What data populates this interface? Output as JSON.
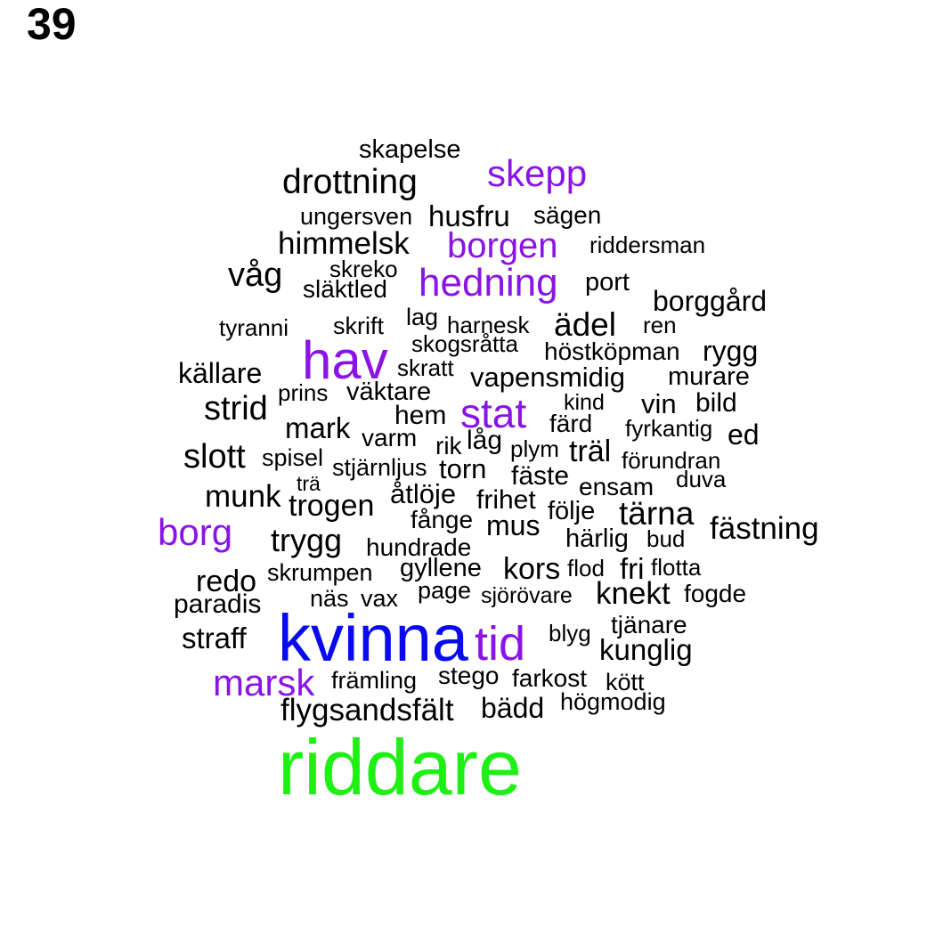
{
  "panel_number": "39",
  "colors": {
    "default": "#000000",
    "purple": "#8a14e6",
    "blue": "#0a0af0",
    "green": "#1ef014"
  },
  "words": {
    "skapelse": "skapelse",
    "skepp": "skepp",
    "drottning": "drottning",
    "ungersven": "ungersven",
    "husfru": "husfru",
    "sagen": "sägen",
    "himmelsk": "himmelsk",
    "borgen": "borgen",
    "riddersman": "riddersman",
    "vag": "våg",
    "skreko": "skreko",
    "slaktled": "släktled",
    "hedning": "hedning",
    "port": "port",
    "borggard": "borggård",
    "tyranni": "tyranni",
    "skrift": "skrift",
    "lag": "lag",
    "harnesk": "harnesk",
    "adel": "ädel",
    "ren": "ren",
    "skogsratta": "skogsråtta",
    "hav": "hav",
    "hostkopman": "höstköpman",
    "rygg": "rygg",
    "kallare": "källare",
    "skratt": "skratt",
    "vapensmidig": "vapensmidig",
    "murare": "murare",
    "prins": "prins",
    "vaktare": "väktare",
    "kind": "kind",
    "vin": "vin",
    "bild": "bild",
    "strid": "strid",
    "hem": "hem",
    "stat": "stat",
    "fard": "färd",
    "fyrkantig": "fyrkantig",
    "ed": "ed",
    "mark": "mark",
    "varm": "varm",
    "rik": "rik",
    "lag2": "låg",
    "plym": "plym",
    "tral": "träl",
    "slott": "slott",
    "spisel": "spisel",
    "stjarnljus": "stjärnljus",
    "torn": "torn",
    "forundran": "förundran",
    "fast": "fäste",
    "tra": "trä",
    "duva": "duva",
    "ensam": "ensam",
    "munk": "munk",
    "atloje": "åtlöje",
    "frihet": "frihet",
    "trogen": "trogen",
    "folje": "följe",
    "tarna": "tärna",
    "fange": "fånge",
    "mus": "mus",
    "borg": "borg",
    "fastning": "fästning",
    "trygg": "trygg",
    "hundrade": "hundrade",
    "harlig": "härlig",
    "bud": "bud",
    "gyllene": "gyllene",
    "kors": "kors",
    "flod": "flod",
    "fri": "fri",
    "flotta": "flotta",
    "skrumpen": "skrumpen",
    "redo": "redo",
    "page": "page",
    "sjorovare": "sjörövare",
    "knekt": "knekt",
    "fogde": "fogde",
    "nas": "näs",
    "vax": "vax",
    "paradis": "paradis",
    "tjanare": "tjänare",
    "kvinna": "kvinna",
    "tid": "tid",
    "blyg": "blyg",
    "straff": "straff",
    "kunglig": "kunglig",
    "stego": "stego",
    "marsk": "marsk",
    "framling": "främling",
    "farkost": "farkost",
    "kott": "kött",
    "hogmodig": "högmodig",
    "flygsandsfalt": "flygsandsfält",
    "badd": "bädd",
    "riddare": "riddare"
  }
}
